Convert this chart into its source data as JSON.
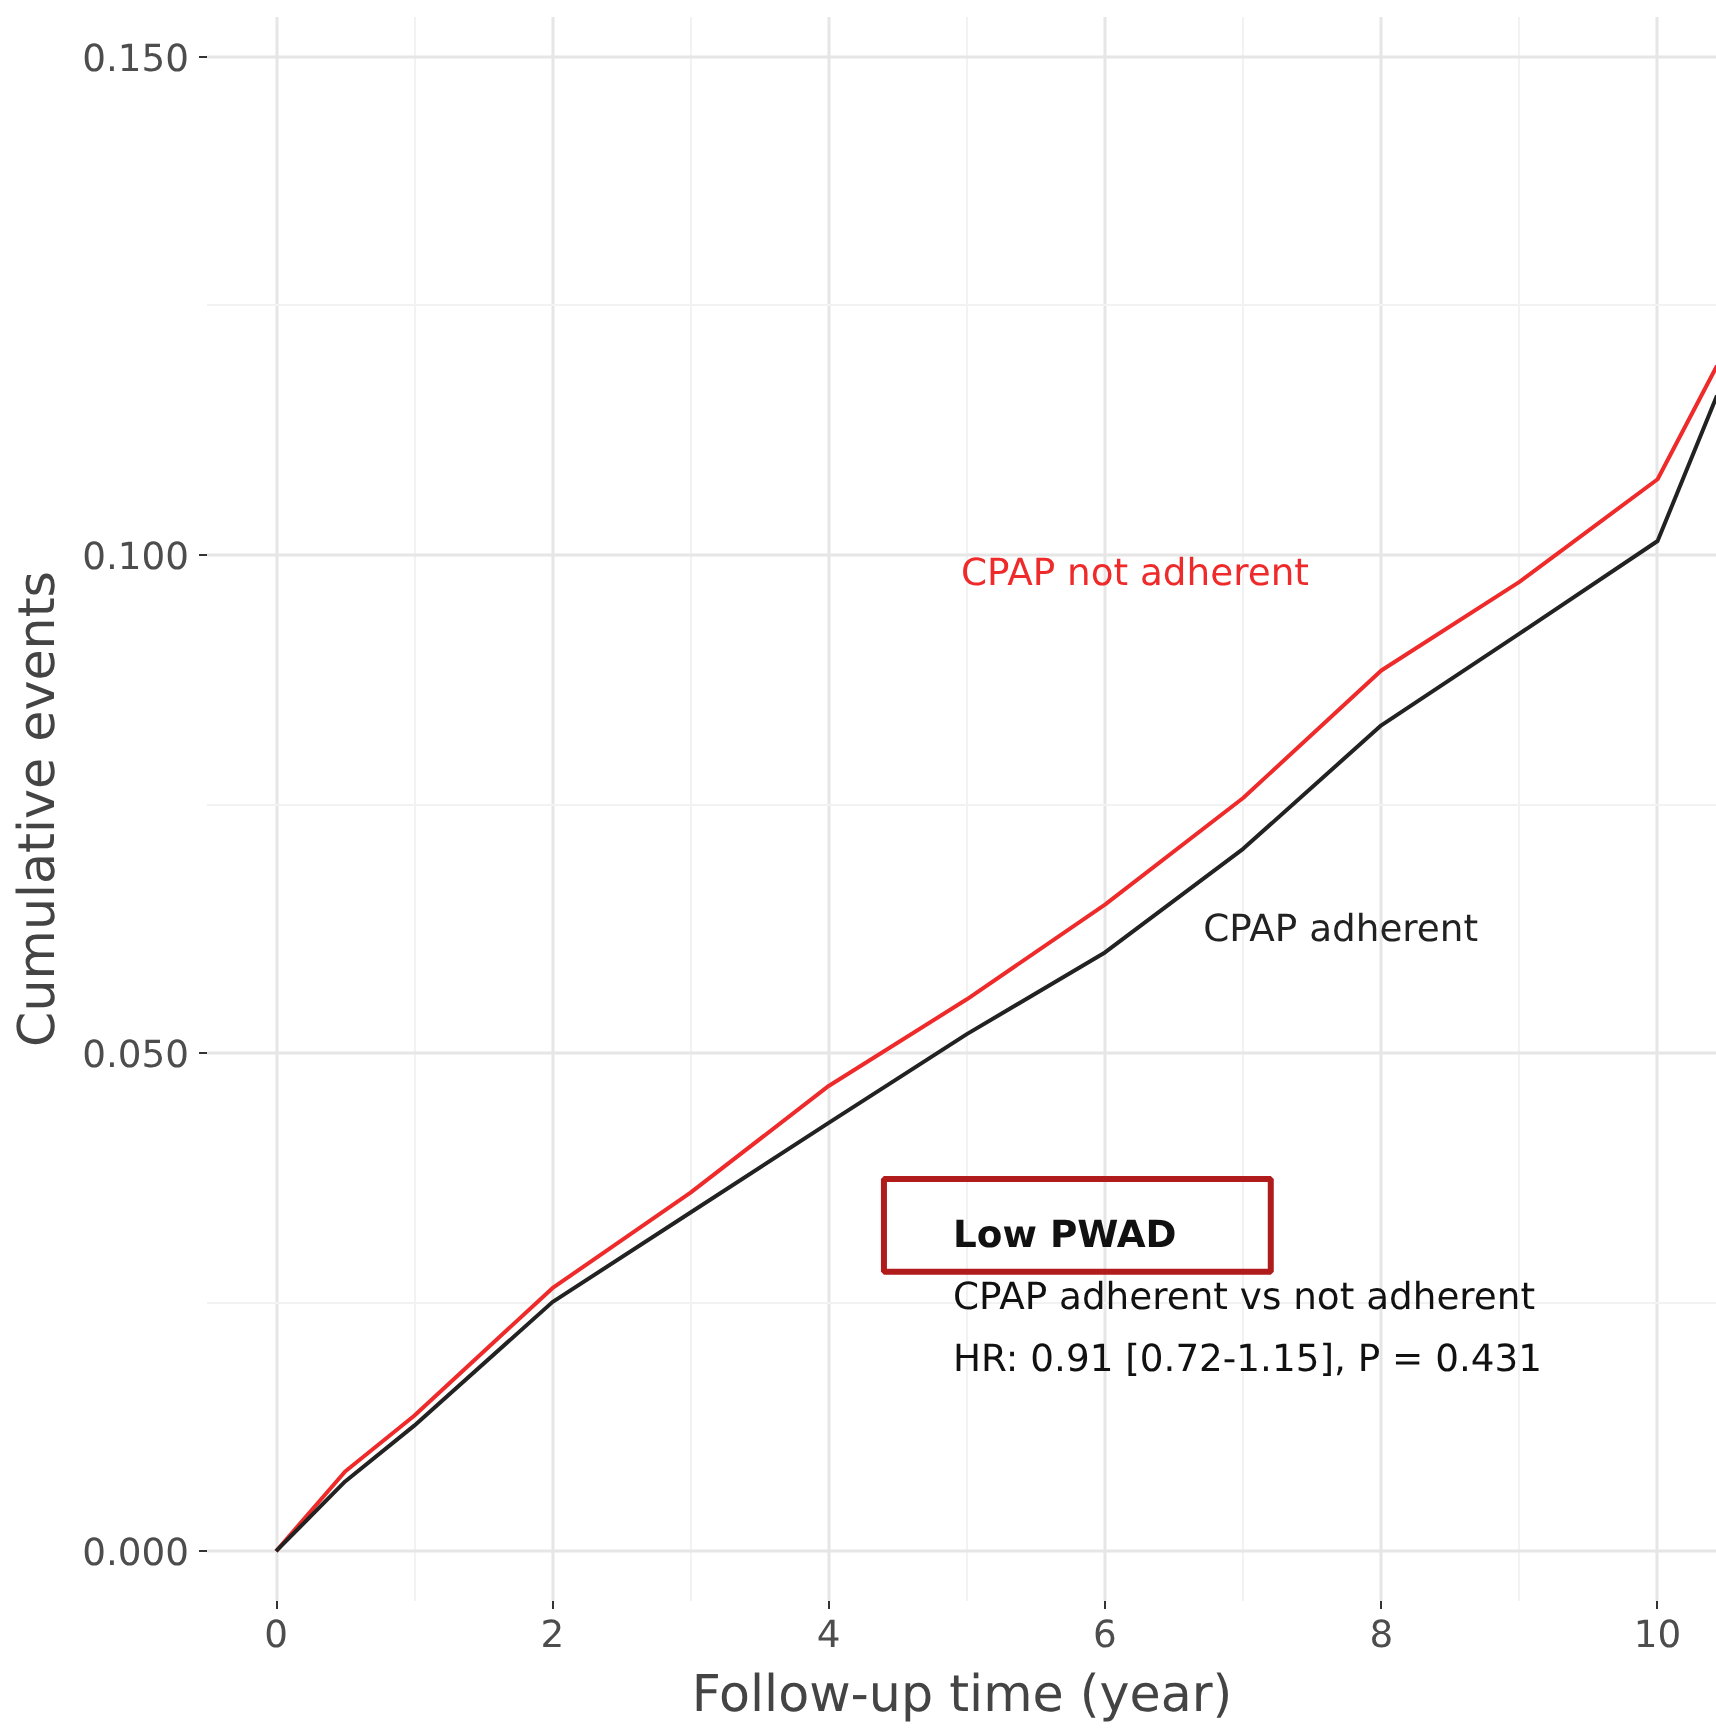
{
  "chart_data": {
    "type": "line",
    "xlabel": "Follow-up time (year)",
    "ylabel": "Cumulative events",
    "x": [
      0,
      0.5,
      1,
      2,
      3,
      4,
      5,
      6,
      7,
      8,
      9,
      10,
      10.43
    ],
    "series": [
      {
        "name": "CPAP not adherent",
        "color": "#ee2a2a",
        "values": [
          0,
          0.008,
          0.0136,
          0.0264,
          0.036,
          0.0467,
          0.0554,
          0.0649,
          0.0756,
          0.0884,
          0.0973,
          0.1076,
          0.119
        ]
      },
      {
        "name": "CPAP adherent",
        "color": "#222222",
        "values": [
          0,
          0.007,
          0.0126,
          0.025,
          0.034,
          0.043,
          0.0519,
          0.0601,
          0.0705,
          0.0829,
          0.0921,
          0.1014,
          0.116
        ]
      }
    ],
    "annotations": [
      "Low PWAD",
      "CPAP adherent vs not adherent",
      "HR: 0.91 [0.72-1.15], P = 0.431"
    ],
    "xlim": [
      -0.5,
      10.43
    ],
    "ylim": [
      -0.005,
      0.154
    ],
    "xticks": [
      0,
      2,
      4,
      6,
      8,
      10
    ],
    "yticks": [
      {
        "value": 0,
        "label": "0.000"
      },
      {
        "value": 0.05,
        "label": "0.050"
      },
      {
        "value": 0.1,
        "label": "0.100"
      },
      {
        "value": 0.15,
        "label": "0.150"
      }
    ],
    "grid": true
  }
}
